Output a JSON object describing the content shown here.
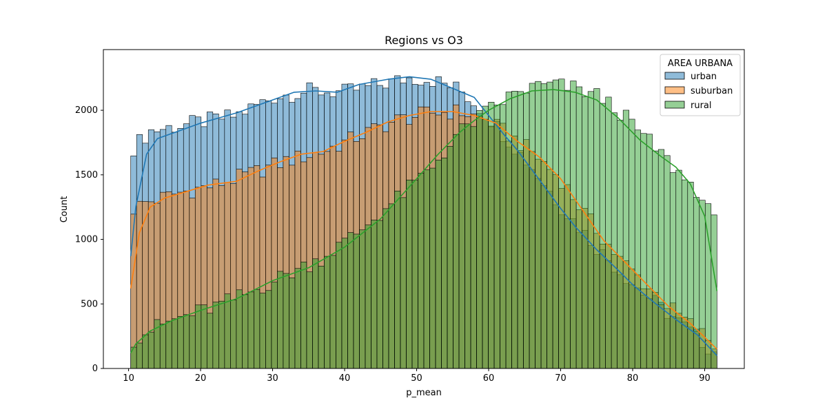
{
  "chart_data": {
    "type": "histogram",
    "title": "Regions vs O3",
    "xlabel": "p_mean",
    "ylabel": "Count",
    "xlim": [
      6.5,
      95.5
    ],
    "ylim": [
      0,
      2470
    ],
    "xticks": [
      10,
      20,
      30,
      40,
      50,
      60,
      70,
      80,
      90
    ],
    "yticks": [
      0,
      500,
      1000,
      1500,
      2000
    ],
    "bin_range": [
      10.3,
      91.7
    ],
    "bin_count": 100,
    "grid": false,
    "legend": {
      "title": "AREA URBANA",
      "position": "top-right"
    },
    "series": [
      {
        "name": "urban",
        "color": "#1f77b4",
        "kde": true,
        "anchors": [
          [
            10.5,
            1700
          ],
          [
            13,
            1840
          ],
          [
            20,
            1910
          ],
          [
            25,
            1960
          ],
          [
            30,
            2100
          ],
          [
            35,
            2150
          ],
          [
            40,
            2140
          ],
          [
            45,
            2200
          ],
          [
            49,
            2250
          ],
          [
            52,
            2240
          ],
          [
            56,
            2160
          ],
          [
            60,
            1950
          ],
          [
            62,
            1820
          ],
          [
            66,
            1560
          ],
          [
            70,
            1260
          ],
          [
            76,
            880
          ],
          [
            80,
            660
          ],
          [
            84,
            470
          ],
          [
            88,
            290
          ],
          [
            91.5,
            120
          ]
        ],
        "kde_points": [
          [
            10.3,
            870
          ],
          [
            11,
            1250
          ],
          [
            12.5,
            1660
          ],
          [
            14,
            1780
          ],
          [
            17,
            1840
          ],
          [
            20,
            1900
          ],
          [
            25,
            1980
          ],
          [
            30,
            2080
          ],
          [
            33,
            2140
          ],
          [
            36,
            2150
          ],
          [
            39,
            2140
          ],
          [
            42,
            2200
          ],
          [
            46,
            2240
          ],
          [
            49,
            2260
          ],
          [
            52,
            2240
          ],
          [
            55,
            2170
          ],
          [
            58,
            2100
          ],
          [
            60,
            1960
          ],
          [
            62,
            1820
          ],
          [
            64,
            1690
          ],
          [
            66,
            1540
          ],
          [
            68,
            1390
          ],
          [
            70,
            1240
          ],
          [
            72,
            1100
          ],
          [
            75,
            920
          ],
          [
            78,
            760
          ],
          [
            80,
            650
          ],
          [
            83,
            510
          ],
          [
            86,
            380
          ],
          [
            89,
            260
          ],
          [
            91.7,
            100
          ]
        ]
      },
      {
        "name": "suburban",
        "color": "#ff7f0e",
        "kde": true,
        "anchors": [
          [
            10.5,
            1230
          ],
          [
            12,
            1280
          ],
          [
            14,
            1310
          ],
          [
            17,
            1360
          ],
          [
            22,
            1420
          ],
          [
            27,
            1510
          ],
          [
            32,
            1610
          ],
          [
            37,
            1680
          ],
          [
            42,
            1800
          ],
          [
            47,
            1920
          ],
          [
            52,
            1980
          ],
          [
            56,
            1990
          ],
          [
            60,
            1920
          ],
          [
            63,
            1800
          ],
          [
            66,
            1680
          ],
          [
            70,
            1470
          ],
          [
            74,
            1150
          ],
          [
            78,
            860
          ],
          [
            82,
            640
          ],
          [
            86,
            430
          ],
          [
            89,
            300
          ],
          [
            91.5,
            170
          ]
        ],
        "kde_points": [
          [
            10.3,
            620
          ],
          [
            11.5,
            1050
          ],
          [
            13,
            1250
          ],
          [
            15,
            1320
          ],
          [
            18,
            1370
          ],
          [
            21,
            1420
          ],
          [
            25,
            1450
          ],
          [
            28,
            1530
          ],
          [
            31,
            1600
          ],
          [
            34,
            1660
          ],
          [
            37,
            1680
          ],
          [
            40,
            1760
          ],
          [
            43,
            1830
          ],
          [
            46,
            1910
          ],
          [
            49,
            1960
          ],
          [
            52,
            1990
          ],
          [
            55,
            1990
          ],
          [
            58,
            1960
          ],
          [
            61,
            1900
          ],
          [
            64,
            1760
          ],
          [
            67,
            1640
          ],
          [
            70,
            1470
          ],
          [
            73,
            1230
          ],
          [
            76,
            990
          ],
          [
            79,
            820
          ],
          [
            82,
            650
          ],
          [
            85,
            480
          ],
          [
            88,
            350
          ],
          [
            91.7,
            150
          ]
        ]
      },
      {
        "name": "rural",
        "color": "#2ca02c",
        "kde": true,
        "anchors": [
          [
            10.5,
            220
          ],
          [
            13,
            300
          ],
          [
            17,
            390
          ],
          [
            22,
            480
          ],
          [
            27,
            590
          ],
          [
            32,
            730
          ],
          [
            37,
            860
          ],
          [
            42,
            1060
          ],
          [
            47,
            1300
          ],
          [
            52,
            1550
          ],
          [
            56,
            1830
          ],
          [
            60,
            2000
          ],
          [
            63,
            2110
          ],
          [
            66,
            2180
          ],
          [
            69,
            2200
          ],
          [
            72,
            2170
          ],
          [
            75,
            2120
          ],
          [
            78,
            2000
          ],
          [
            81,
            1830
          ],
          [
            84,
            1660
          ],
          [
            87,
            1480
          ],
          [
            89,
            1380
          ],
          [
            91.5,
            1110
          ]
        ],
        "kde_points": [
          [
            10.3,
            120
          ],
          [
            11,
            190
          ],
          [
            13,
            290
          ],
          [
            16,
            370
          ],
          [
            20,
            450
          ],
          [
            25,
            540
          ],
          [
            30,
            680
          ],
          [
            35,
            780
          ],
          [
            40,
            940
          ],
          [
            45,
            1160
          ],
          [
            50,
            1470
          ],
          [
            53,
            1660
          ],
          [
            56,
            1830
          ],
          [
            58,
            1920
          ],
          [
            60,
            2000
          ],
          [
            63,
            2090
          ],
          [
            66,
            2150
          ],
          [
            69,
            2160
          ],
          [
            72,
            2140
          ],
          [
            75,
            2080
          ],
          [
            78,
            1940
          ],
          [
            81,
            1770
          ],
          [
            84,
            1640
          ],
          [
            86,
            1560
          ],
          [
            88,
            1430
          ],
          [
            90,
            1180
          ],
          [
            91.7,
            600
          ]
        ]
      }
    ]
  }
}
